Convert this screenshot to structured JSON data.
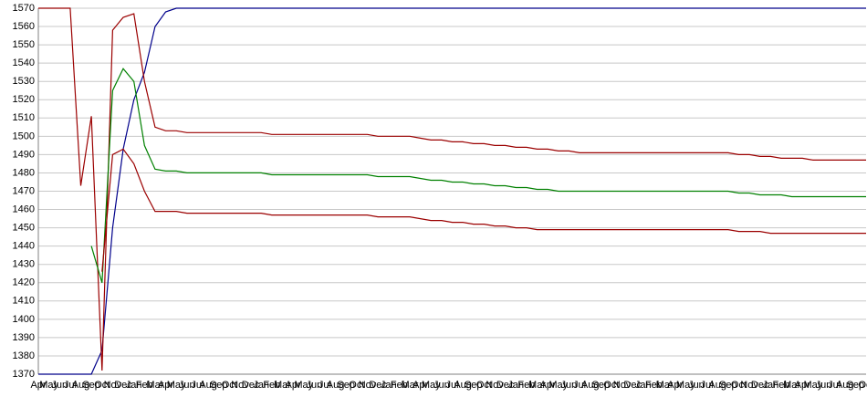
{
  "chart_data": {
    "type": "line",
    "categories": [
      "Apr",
      "May",
      "Jun",
      "Jul",
      "Aug",
      "Sep",
      "Oct",
      "Nov",
      "Dec",
      "Jan",
      "Feb",
      "Mar",
      "Apr",
      "May",
      "Jun",
      "Jul",
      "Aug",
      "Sep",
      "Oct",
      "Nov",
      "Dec",
      "Jan",
      "Feb",
      "Mar",
      "Apr",
      "May",
      "Jun",
      "Jul",
      "Aug",
      "Sep",
      "Oct",
      "Nov",
      "Dec",
      "Jan",
      "Feb",
      "Mar",
      "Apr",
      "May",
      "Jun",
      "Jul",
      "Aug",
      "Sep",
      "Oct",
      "Nov",
      "Dec",
      "Jan",
      "Feb",
      "Mar",
      "Apr",
      "May",
      "Jun",
      "Jul",
      "Aug",
      "Sep",
      "Oct",
      "Nov",
      "Dec",
      "Jan",
      "Feb",
      "Mar",
      "Apr",
      "May",
      "Jun",
      "Jul",
      "Aug",
      "Sep",
      "Oct",
      "Nov",
      "Dec",
      "Jan",
      "Feb",
      "Mar",
      "Apr",
      "May",
      "Jun",
      "Jul",
      "Aug",
      "Sep",
      "Oct"
    ],
    "series": [
      {
        "color": "#00008b",
        "values": [
          1370,
          1370,
          1370,
          1370,
          1370,
          1370,
          1383,
          1450,
          1493,
          1520,
          1535,
          1560,
          1568,
          1570,
          1570,
          1570,
          1570,
          1570,
          1570,
          1570,
          1570,
          1570,
          1570,
          1570,
          1570,
          1570,
          1570,
          1570,
          1570,
          1570,
          1570,
          1570,
          1570,
          1570,
          1570,
          1570,
          1570,
          1570,
          1570,
          1570,
          1570,
          1570,
          1570,
          1570,
          1570,
          1570,
          1570,
          1570,
          1570,
          1570,
          1570,
          1570,
          1570,
          1570,
          1570,
          1570,
          1570,
          1570,
          1570,
          1570,
          1570,
          1570,
          1570,
          1570,
          1570,
          1570,
          1570,
          1570,
          1570,
          1570,
          1570,
          1570,
          1570,
          1570,
          1570,
          1570,
          1570,
          1570,
          1570
        ]
      },
      {
        "color": "#9b0000",
        "values": [
          1570,
          1570,
          1570,
          1570,
          1473,
          1511,
          1372,
          1558,
          1565,
          1567,
          1530,
          1505,
          1503,
          1503,
          1502,
          1502,
          1502,
          1502,
          1502,
          1502,
          1502,
          1502,
          1501,
          1501,
          1501,
          1501,
          1501,
          1501,
          1501,
          1501,
          1501,
          1501,
          1500,
          1500,
          1500,
          1500,
          1499,
          1498,
          1498,
          1497,
          1497,
          1496,
          1496,
          1495,
          1495,
          1494,
          1494,
          1493,
          1493,
          1492,
          1492,
          1491,
          1491,
          1491,
          1491,
          1491,
          1491,
          1491,
          1491,
          1491,
          1491,
          1491,
          1491,
          1491,
          1491,
          1491,
          1490,
          1490,
          1489,
          1489,
          1488,
          1488,
          1488,
          1487,
          1487,
          1487,
          1487,
          1487,
          1487
        ]
      },
      {
        "color": "#008000",
        "values": [
          null,
          null,
          null,
          null,
          null,
          1440,
          1420,
          1525,
          1537,
          1530,
          1495,
          1482,
          1481,
          1481,
          1480,
          1480,
          1480,
          1480,
          1480,
          1480,
          1480,
          1480,
          1479,
          1479,
          1479,
          1479,
          1479,
          1479,
          1479,
          1479,
          1479,
          1479,
          1478,
          1478,
          1478,
          1478,
          1477,
          1476,
          1476,
          1475,
          1475,
          1474,
          1474,
          1473,
          1473,
          1472,
          1472,
          1471,
          1471,
          1470,
          1470,
          1470,
          1470,
          1470,
          1470,
          1470,
          1470,
          1470,
          1470,
          1470,
          1470,
          1470,
          1470,
          1470,
          1470,
          1470,
          1469,
          1469,
          1468,
          1468,
          1468,
          1467,
          1467,
          1467,
          1467,
          1467,
          1467,
          1467,
          1467
        ]
      },
      {
        "color": "#9b0000",
        "values": [
          null,
          null,
          null,
          null,
          null,
          null,
          1426,
          1490,
          1493,
          1485,
          1470,
          1459,
          1459,
          1459,
          1458,
          1458,
          1458,
          1458,
          1458,
          1458,
          1458,
          1458,
          1457,
          1457,
          1457,
          1457,
          1457,
          1457,
          1457,
          1457,
          1457,
          1457,
          1456,
          1456,
          1456,
          1456,
          1455,
          1454,
          1454,
          1453,
          1453,
          1452,
          1452,
          1451,
          1451,
          1450,
          1450,
          1449,
          1449,
          1449,
          1449,
          1449,
          1449,
          1449,
          1449,
          1449,
          1449,
          1449,
          1449,
          1449,
          1449,
          1449,
          1449,
          1449,
          1449,
          1449,
          1448,
          1448,
          1448,
          1447,
          1447,
          1447,
          1447,
          1447,
          1447,
          1447,
          1447,
          1447,
          1447
        ]
      }
    ],
    "ylim": [
      1370,
      1570
    ],
    "yticks": [
      1370,
      1380,
      1390,
      1400,
      1410,
      1420,
      1430,
      1440,
      1450,
      1460,
      1470,
      1480,
      1490,
      1500,
      1510,
      1520,
      1530,
      1540,
      1550,
      1560,
      1570
    ],
    "grid": true
  }
}
